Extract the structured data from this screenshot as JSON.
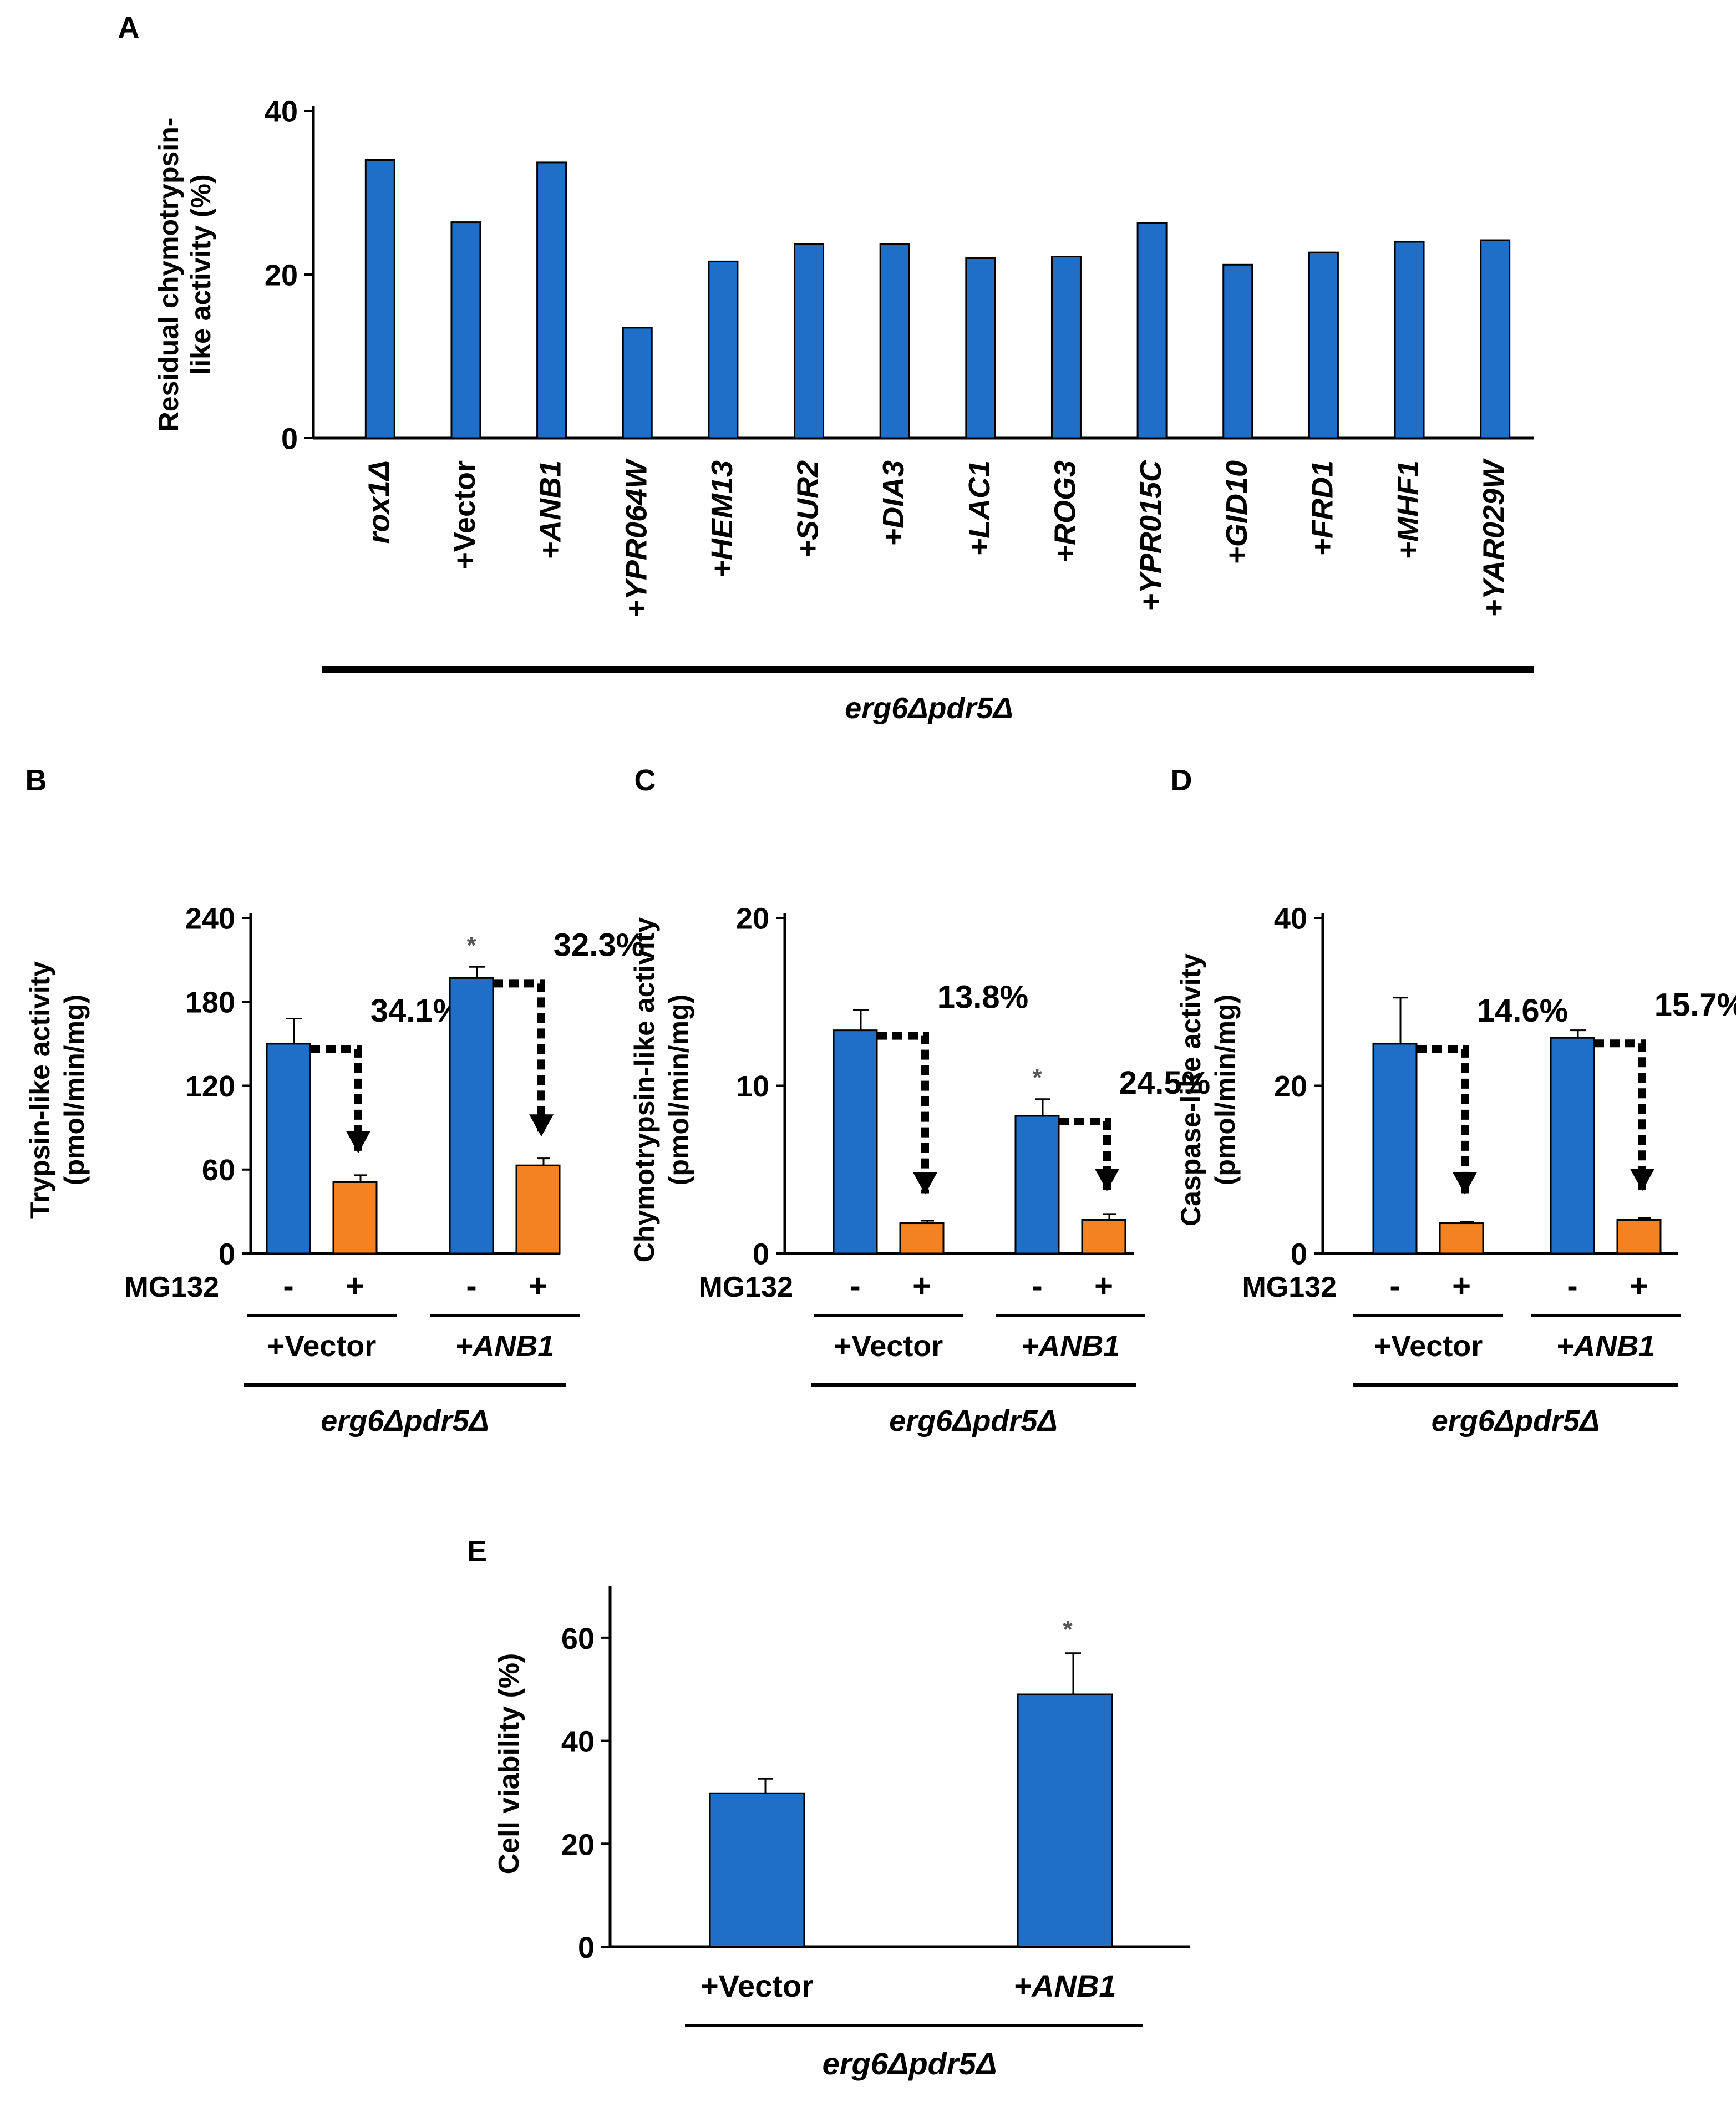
{
  "colors": {
    "blue": "#1F6FC8",
    "orange": "#F58220",
    "black": "#000000",
    "star": "#555555"
  },
  "chart_data": [
    {
      "id": "A",
      "panel": "A",
      "type": "bar",
      "ylabel_lines": [
        "Residual chymotrypsin-",
        "like activity (%)"
      ],
      "ylim": [
        0,
        40
      ],
      "yticks": [
        0,
        20,
        40
      ],
      "categories": [
        {
          "label": "rox1Δ",
          "italic": true
        },
        {
          "label": "+Vector",
          "italic": false
        },
        {
          "label": "+ANB1",
          "italic": true
        },
        {
          "label": "+YPR064W",
          "italic": true
        },
        {
          "label": "+HEM13",
          "italic": true
        },
        {
          "label": "+SUR2",
          "italic": true
        },
        {
          "label": "+DIA3",
          "italic": true
        },
        {
          "label": "+LAC1",
          "italic": true
        },
        {
          "label": "+ROG3",
          "italic": true
        },
        {
          "label": "+YPR015C",
          "italic": true
        },
        {
          "label": "+GID10",
          "italic": true
        },
        {
          "label": "+FRD1",
          "italic": true
        },
        {
          "label": "+MHF1",
          "italic": true
        },
        {
          "label": "+YAR029W",
          "italic": true
        }
      ],
      "values": [
        34.0,
        26.4,
        33.7,
        13.5,
        21.6,
        23.7,
        23.7,
        22.0,
        22.2,
        26.3,
        21.2,
        22.7,
        24.0,
        24.2
      ],
      "strain": "erg6Δpdr5Δ"
    },
    {
      "id": "B",
      "panel": "B",
      "type": "bar",
      "ylabel_lines": [
        "Trypsin-like activity",
        "(pmol/min/mg)"
      ],
      "ylim": [
        0,
        240
      ],
      "yticks": [
        0,
        60,
        120,
        180,
        240
      ],
      "row_label": "MG132",
      "minus": "-",
      "plus": "+",
      "groups": [
        {
          "label": "+Vector",
          "italic": false,
          "untreated": 150,
          "untreated_err": 18,
          "treated": 51,
          "treated_err": 5,
          "percent": "34.1%",
          "star": ""
        },
        {
          "label": "+ANB1",
          "italic": true,
          "untreated": 197,
          "untreated_err": 8,
          "treated": 63,
          "treated_err": 5,
          "percent": "32.3%",
          "star": "*"
        }
      ],
      "strain": "erg6Δpdr5Δ"
    },
    {
      "id": "C",
      "panel": "C",
      "type": "bar",
      "ylabel_lines": [
        "Chymotrypsin-like activity",
        "(pmol/min/mg)"
      ],
      "ylim": [
        0,
        20
      ],
      "yticks": [
        0,
        10,
        20
      ],
      "row_label": "MG132",
      "minus": "-",
      "plus": "+",
      "groups": [
        {
          "label": "+Vector",
          "italic": false,
          "untreated": 13.3,
          "untreated_err": 1.2,
          "treated": 1.8,
          "treated_err": 0.15,
          "percent": "13.8%",
          "star": ""
        },
        {
          "label": "+ANB1",
          "italic": true,
          "untreated": 8.2,
          "untreated_err": 1.0,
          "treated": 2.0,
          "treated_err": 0.35,
          "percent": "24.5%",
          "star": "*"
        }
      ],
      "strain": "erg6Δpdr5Δ"
    },
    {
      "id": "D",
      "panel": "D",
      "type": "bar",
      "ylabel_lines": [
        "Caspase-like activity",
        "(pmol/min/mg)"
      ],
      "ylim": [
        0,
        40
      ],
      "yticks": [
        0,
        20,
        40
      ],
      "row_label": "MG132",
      "minus": "-",
      "plus": "+",
      "groups": [
        {
          "label": "+Vector",
          "italic": false,
          "untreated": 25.0,
          "untreated_err": 5.5,
          "treated": 3.6,
          "treated_err": 0.2,
          "percent": "14.6%",
          "star": ""
        },
        {
          "label": "+ANB1",
          "italic": true,
          "untreated": 25.7,
          "untreated_err": 0.9,
          "treated": 4.0,
          "treated_err": 0.2,
          "percent": "15.7%",
          "star": ""
        }
      ],
      "strain": "erg6Δpdr5Δ"
    },
    {
      "id": "E",
      "panel": "E",
      "type": "bar",
      "ylabel_lines": [
        "Cell viability (%)"
      ],
      "ylim": [
        0,
        70
      ],
      "yticks": [
        0,
        20,
        40,
        60
      ],
      "categories": [
        {
          "label": "+Vector",
          "italic": false
        },
        {
          "label": "+ANB1",
          "italic": true
        }
      ],
      "values": [
        29.8,
        49.0
      ],
      "errors": [
        2.8,
        8.0
      ],
      "stars": [
        "",
        "*"
      ],
      "strain": "erg6Δpdr5Δ"
    }
  ]
}
